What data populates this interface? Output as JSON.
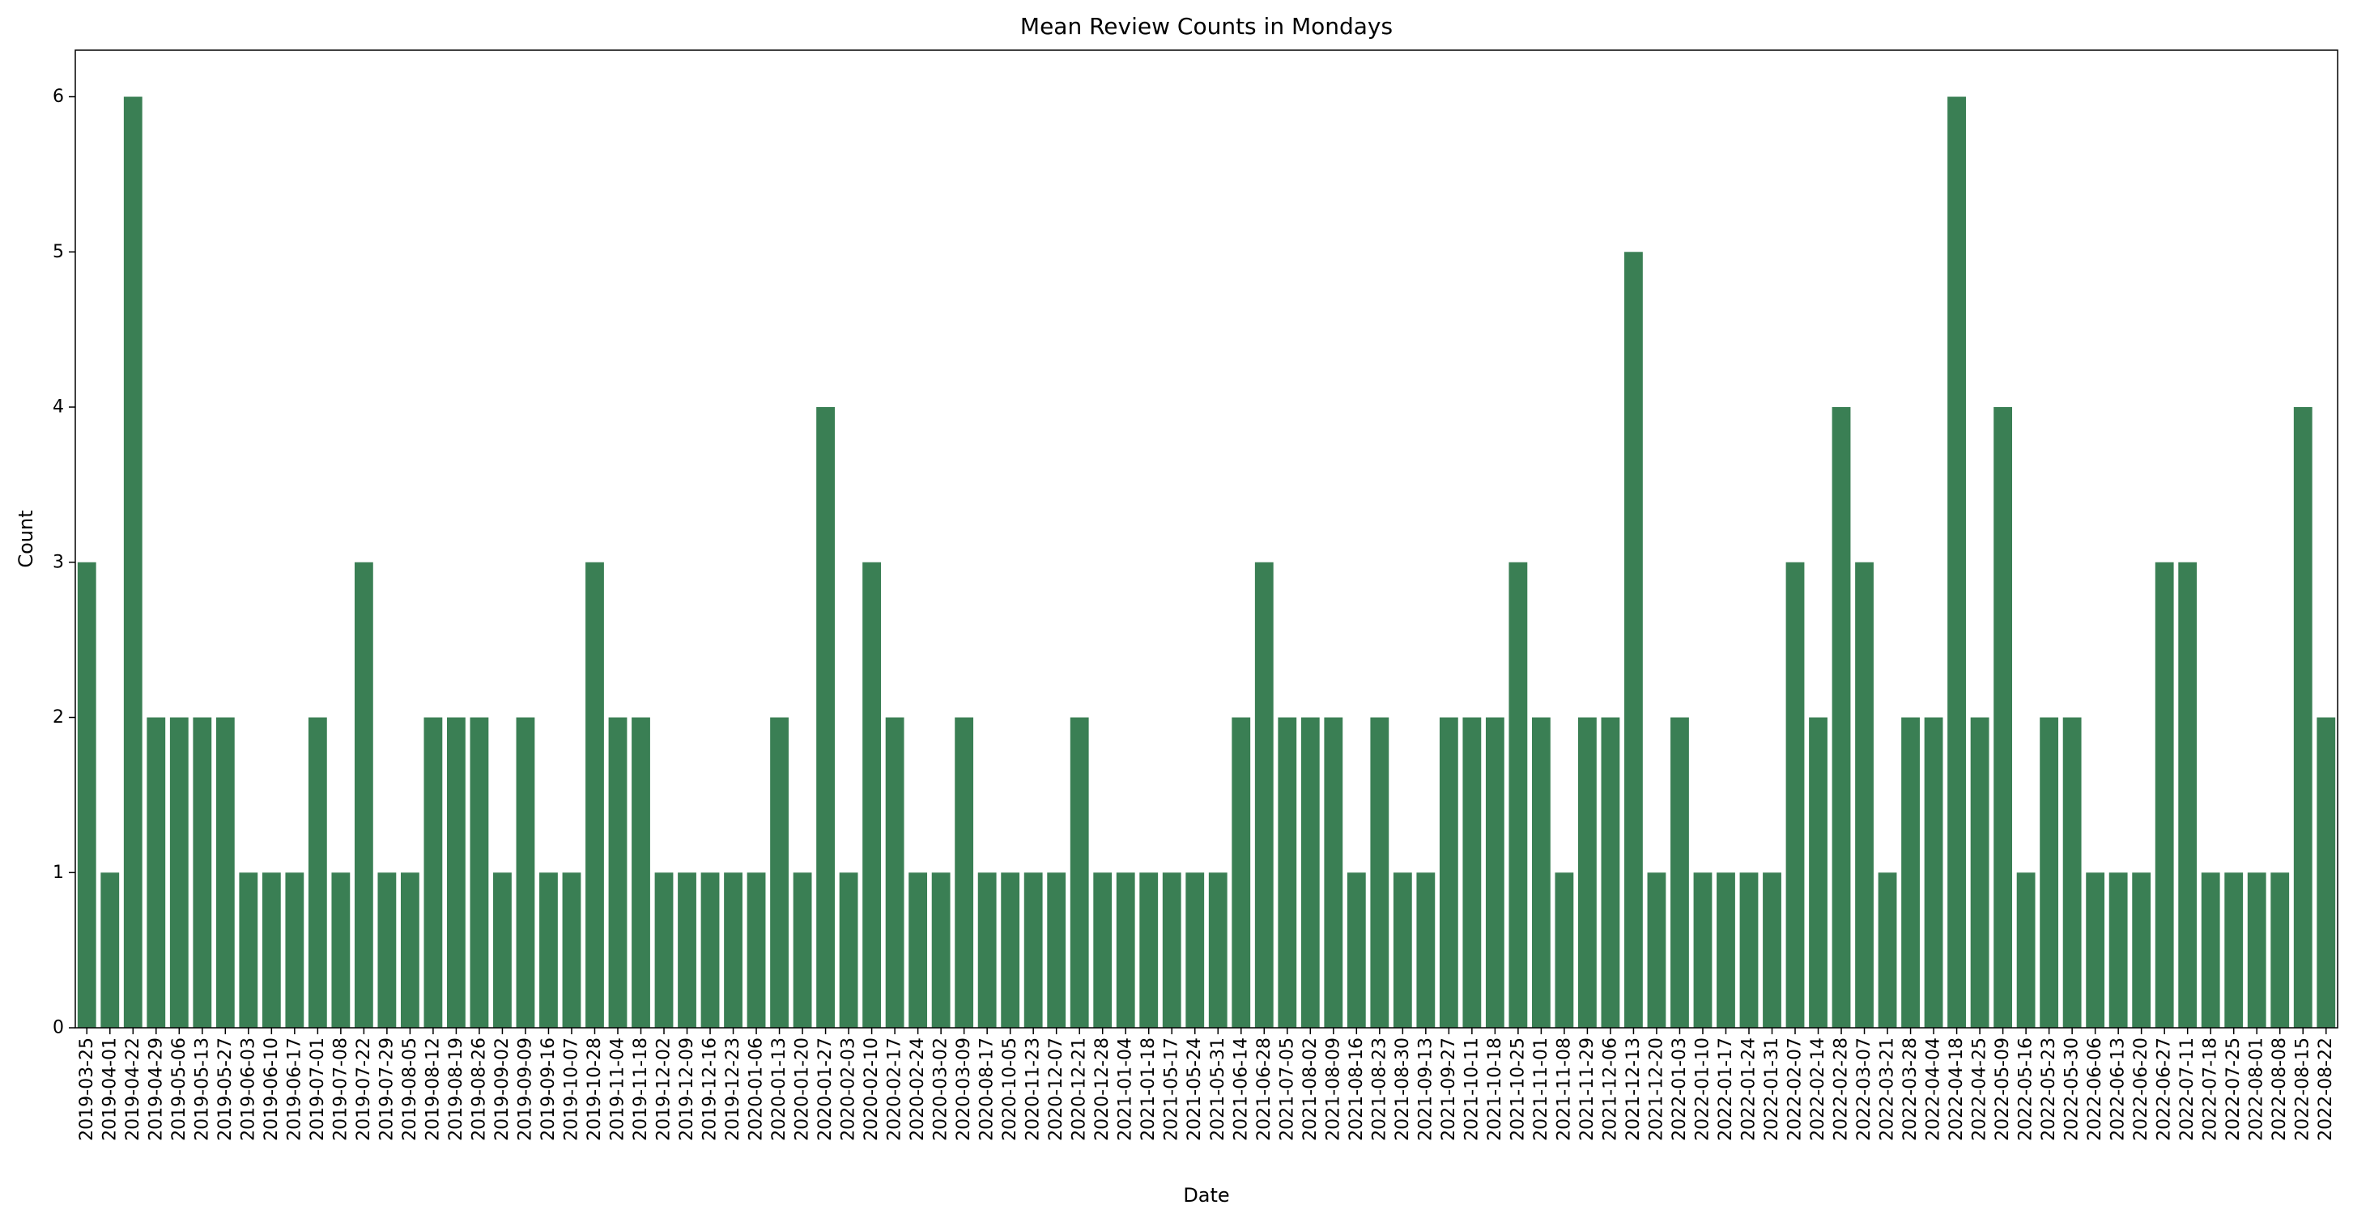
{
  "chart_data": {
    "type": "bar",
    "title": "Mean Review Counts in Mondays",
    "xlabel": "Date",
    "ylabel": "Count",
    "ylim": [
      0,
      6.3
    ],
    "yticks": [
      0,
      1,
      2,
      3,
      4,
      5,
      6
    ],
    "grid": false,
    "legend": "none",
    "bar_color": "#3a7f54",
    "categories": [
      "2019-03-25",
      "2019-04-01",
      "2019-04-22",
      "2019-04-29",
      "2019-05-06",
      "2019-05-13",
      "2019-05-27",
      "2019-06-03",
      "2019-06-10",
      "2019-06-17",
      "2019-07-01",
      "2019-07-08",
      "2019-07-22",
      "2019-07-29",
      "2019-08-05",
      "2019-08-12",
      "2019-08-19",
      "2019-08-26",
      "2019-09-02",
      "2019-09-09",
      "2019-09-16",
      "2019-10-07",
      "2019-10-28",
      "2019-11-04",
      "2019-11-18",
      "2019-12-02",
      "2019-12-09",
      "2019-12-16",
      "2019-12-23",
      "2020-01-06",
      "2020-01-13",
      "2020-01-20",
      "2020-01-27",
      "2020-02-03",
      "2020-02-10",
      "2020-02-17",
      "2020-02-24",
      "2020-03-02",
      "2020-03-09",
      "2020-08-17",
      "2020-10-05",
      "2020-11-23",
      "2020-12-07",
      "2020-12-21",
      "2020-12-28",
      "2021-01-04",
      "2021-01-18",
      "2021-05-17",
      "2021-05-24",
      "2021-05-31",
      "2021-06-14",
      "2021-06-28",
      "2021-07-05",
      "2021-08-02",
      "2021-08-09",
      "2021-08-16",
      "2021-08-23",
      "2021-08-30",
      "2021-09-13",
      "2021-09-27",
      "2021-10-11",
      "2021-10-18",
      "2021-10-25",
      "2021-11-01",
      "2021-11-08",
      "2021-11-29",
      "2021-12-06",
      "2021-12-13",
      "2021-12-20",
      "2022-01-03",
      "2022-01-10",
      "2022-01-17",
      "2022-01-24",
      "2022-01-31",
      "2022-02-07",
      "2022-02-14",
      "2022-02-28",
      "2022-03-07",
      "2022-03-21",
      "2022-03-28",
      "2022-04-04",
      "2022-04-18",
      "2022-04-25",
      "2022-05-09",
      "2022-05-16",
      "2022-05-23",
      "2022-05-30",
      "2022-06-06",
      "2022-06-13",
      "2022-06-20",
      "2022-06-27",
      "2022-07-11",
      "2022-07-18",
      "2022-07-25",
      "2022-08-01",
      "2022-08-08",
      "2022-08-15",
      "2022-08-22"
    ],
    "values": [
      3,
      1,
      6,
      2,
      2,
      2,
      2,
      1,
      1,
      1,
      2,
      1,
      3,
      1,
      1,
      2,
      2,
      2,
      1,
      2,
      1,
      1,
      3,
      2,
      2,
      1,
      1,
      1,
      1,
      1,
      2,
      1,
      4,
      1,
      3,
      2,
      1,
      1,
      2,
      1,
      1,
      1,
      1,
      2,
      1,
      1,
      1,
      1,
      1,
      1,
      2,
      3,
      2,
      2,
      2,
      1,
      2,
      1,
      1,
      2,
      2,
      2,
      3,
      2,
      1,
      2,
      2,
      5,
      1,
      2,
      1,
      1,
      1,
      1,
      3,
      2,
      4,
      3,
      1,
      2,
      2,
      6,
      2,
      4,
      1,
      2,
      2,
      1,
      1,
      1,
      3,
      3,
      1,
      1,
      1,
      1,
      4,
      2
    ]
  }
}
